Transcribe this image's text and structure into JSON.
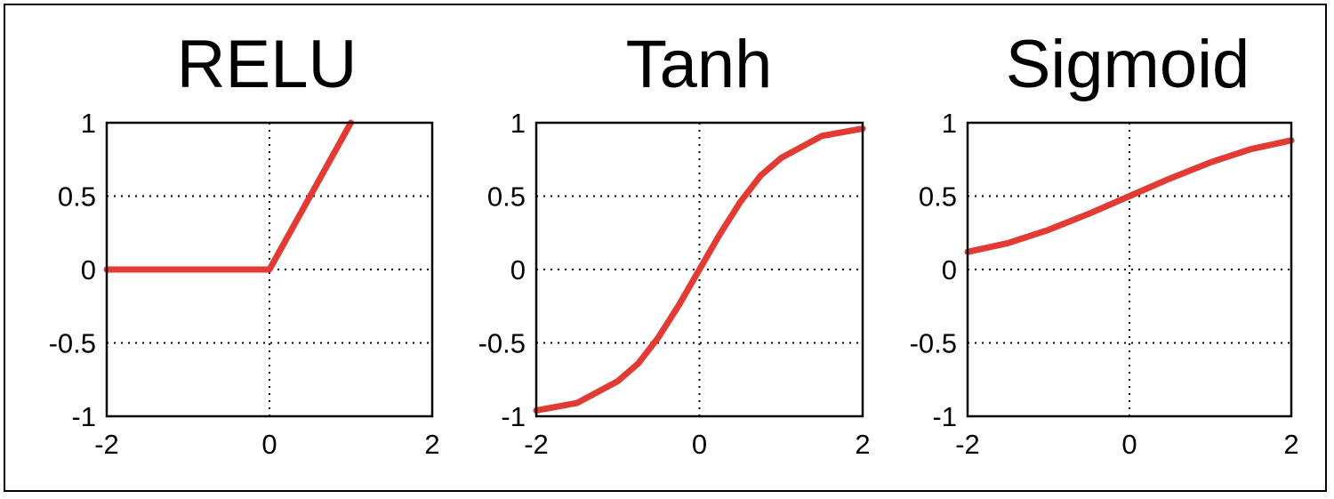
{
  "colors": {
    "series": "#e33b34",
    "axes": "#000000",
    "background": "#ffffff"
  },
  "chart_data": [
    {
      "type": "line",
      "title": "RELU",
      "xlim": [
        -2,
        2
      ],
      "ylim": [
        -1,
        1
      ],
      "xticks": [
        -2,
        0,
        2
      ],
      "yticks": [
        -1,
        -0.5,
        0,
        0.5,
        1
      ],
      "xtick_labels": [
        "-2",
        "0",
        "2"
      ],
      "ytick_labels": [
        "-1",
        "-0.5",
        "0",
        "0.5",
        "1"
      ],
      "grid": true,
      "series": [
        {
          "x": [
            -2,
            0,
            1
          ],
          "y": [
            0,
            0,
            1
          ]
        }
      ]
    },
    {
      "type": "line",
      "title": "Tanh",
      "xlim": [
        -2,
        2
      ],
      "ylim": [
        -1,
        1
      ],
      "xticks": [
        -2,
        0,
        2
      ],
      "yticks": [
        -1,
        -0.5,
        0,
        0.5,
        1
      ],
      "xtick_labels": [
        "-2",
        "0",
        "2"
      ],
      "ytick_labels": [
        "-1",
        "-0.5",
        "0",
        "0.5",
        "1"
      ],
      "grid": true,
      "series": [
        {
          "x": [
            -2,
            -1.5,
            -1,
            -0.75,
            -0.5,
            -0.25,
            0,
            0.25,
            0.5,
            0.75,
            1,
            1.5,
            2
          ],
          "y": [
            -0.96,
            -0.91,
            -0.76,
            -0.64,
            -0.46,
            -0.24,
            0,
            0.24,
            0.46,
            0.64,
            0.76,
            0.91,
            0.96
          ]
        }
      ]
    },
    {
      "type": "line",
      "title": "Sigmoid",
      "xlim": [
        -2,
        2
      ],
      "ylim": [
        -1,
        1
      ],
      "xticks": [
        -2,
        0,
        2
      ],
      "yticks": [
        -1,
        -0.5,
        0,
        0.5,
        1
      ],
      "xtick_labels": [
        "-2",
        "0",
        "2"
      ],
      "ytick_labels": [
        "-1",
        "-0.5",
        "0",
        "0.5",
        "1"
      ],
      "grid": true,
      "series": [
        {
          "x": [
            -2,
            -1.5,
            -1,
            -0.5,
            0,
            0.5,
            1,
            1.5,
            2
          ],
          "y": [
            0.12,
            0.18,
            0.27,
            0.38,
            0.5,
            0.62,
            0.73,
            0.82,
            0.88
          ]
        }
      ]
    }
  ]
}
